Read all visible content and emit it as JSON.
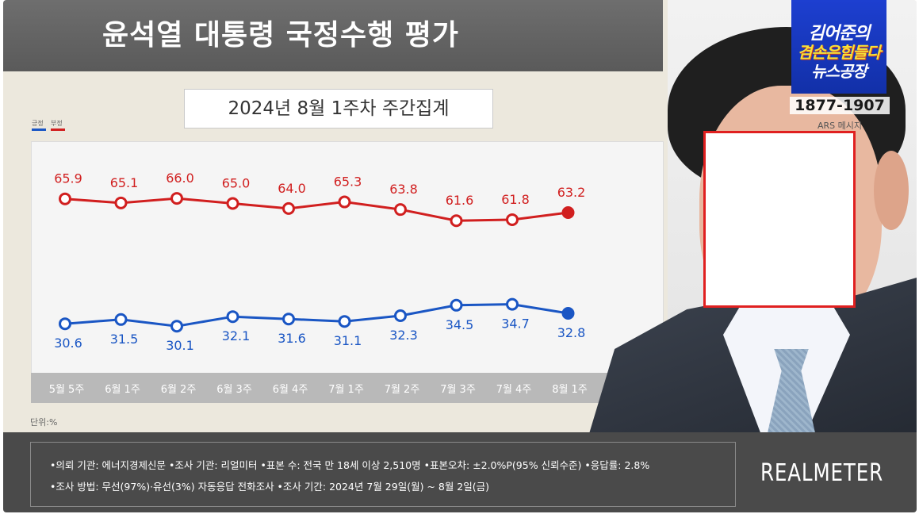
{
  "title": "윤석열 대통령 국정수행 평가",
  "subtitle": "2024년 8월 1주차 주간집계",
  "unit_label": "단위:%",
  "logo": {
    "line1": "김어준의",
    "line2": "겸손은힘들다",
    "line3": "뉴스공장",
    "phone": "1877-1907",
    "ars": "ARS 메시지"
  },
  "footer": {
    "line1": "•의뢰 기관: 에너지경제신문 •조사 기관: 리얼미터 •표본 수: 전국 만 18세 이상 2,510명 •표본오차: ±2.0%P(95% 신뢰수준) •응답률: 2.8%",
    "line2": "•조사 방법: 무선(97%)·유선(3%) 자동응답 전화조사 •조사 기간: 2024년 7월 29일(월) ~ 8월 2일(금)",
    "brand": "REALMETER"
  },
  "colors": {
    "positive": "#1a56c4",
    "negative": "#d11f1f"
  },
  "chart_data": {
    "type": "line",
    "categories": [
      "5월 5주",
      "6월 1주",
      "6월 2주",
      "6월 3주",
      "6월 4주",
      "7월 1주",
      "7월 2주",
      "7월 3주",
      "7월 4주",
      "8월 1주"
    ],
    "series": [
      {
        "name": "부정",
        "values": [
          65.9,
          65.1,
          66.0,
          65.0,
          64.0,
          65.3,
          63.8,
          61.6,
          61.8,
          63.2
        ]
      },
      {
        "name": "긍정",
        "values": [
          30.6,
          31.5,
          30.1,
          32.1,
          31.6,
          31.1,
          32.3,
          34.5,
          34.7,
          32.8
        ]
      }
    ],
    "grid": false,
    "legend": "top-left"
  }
}
